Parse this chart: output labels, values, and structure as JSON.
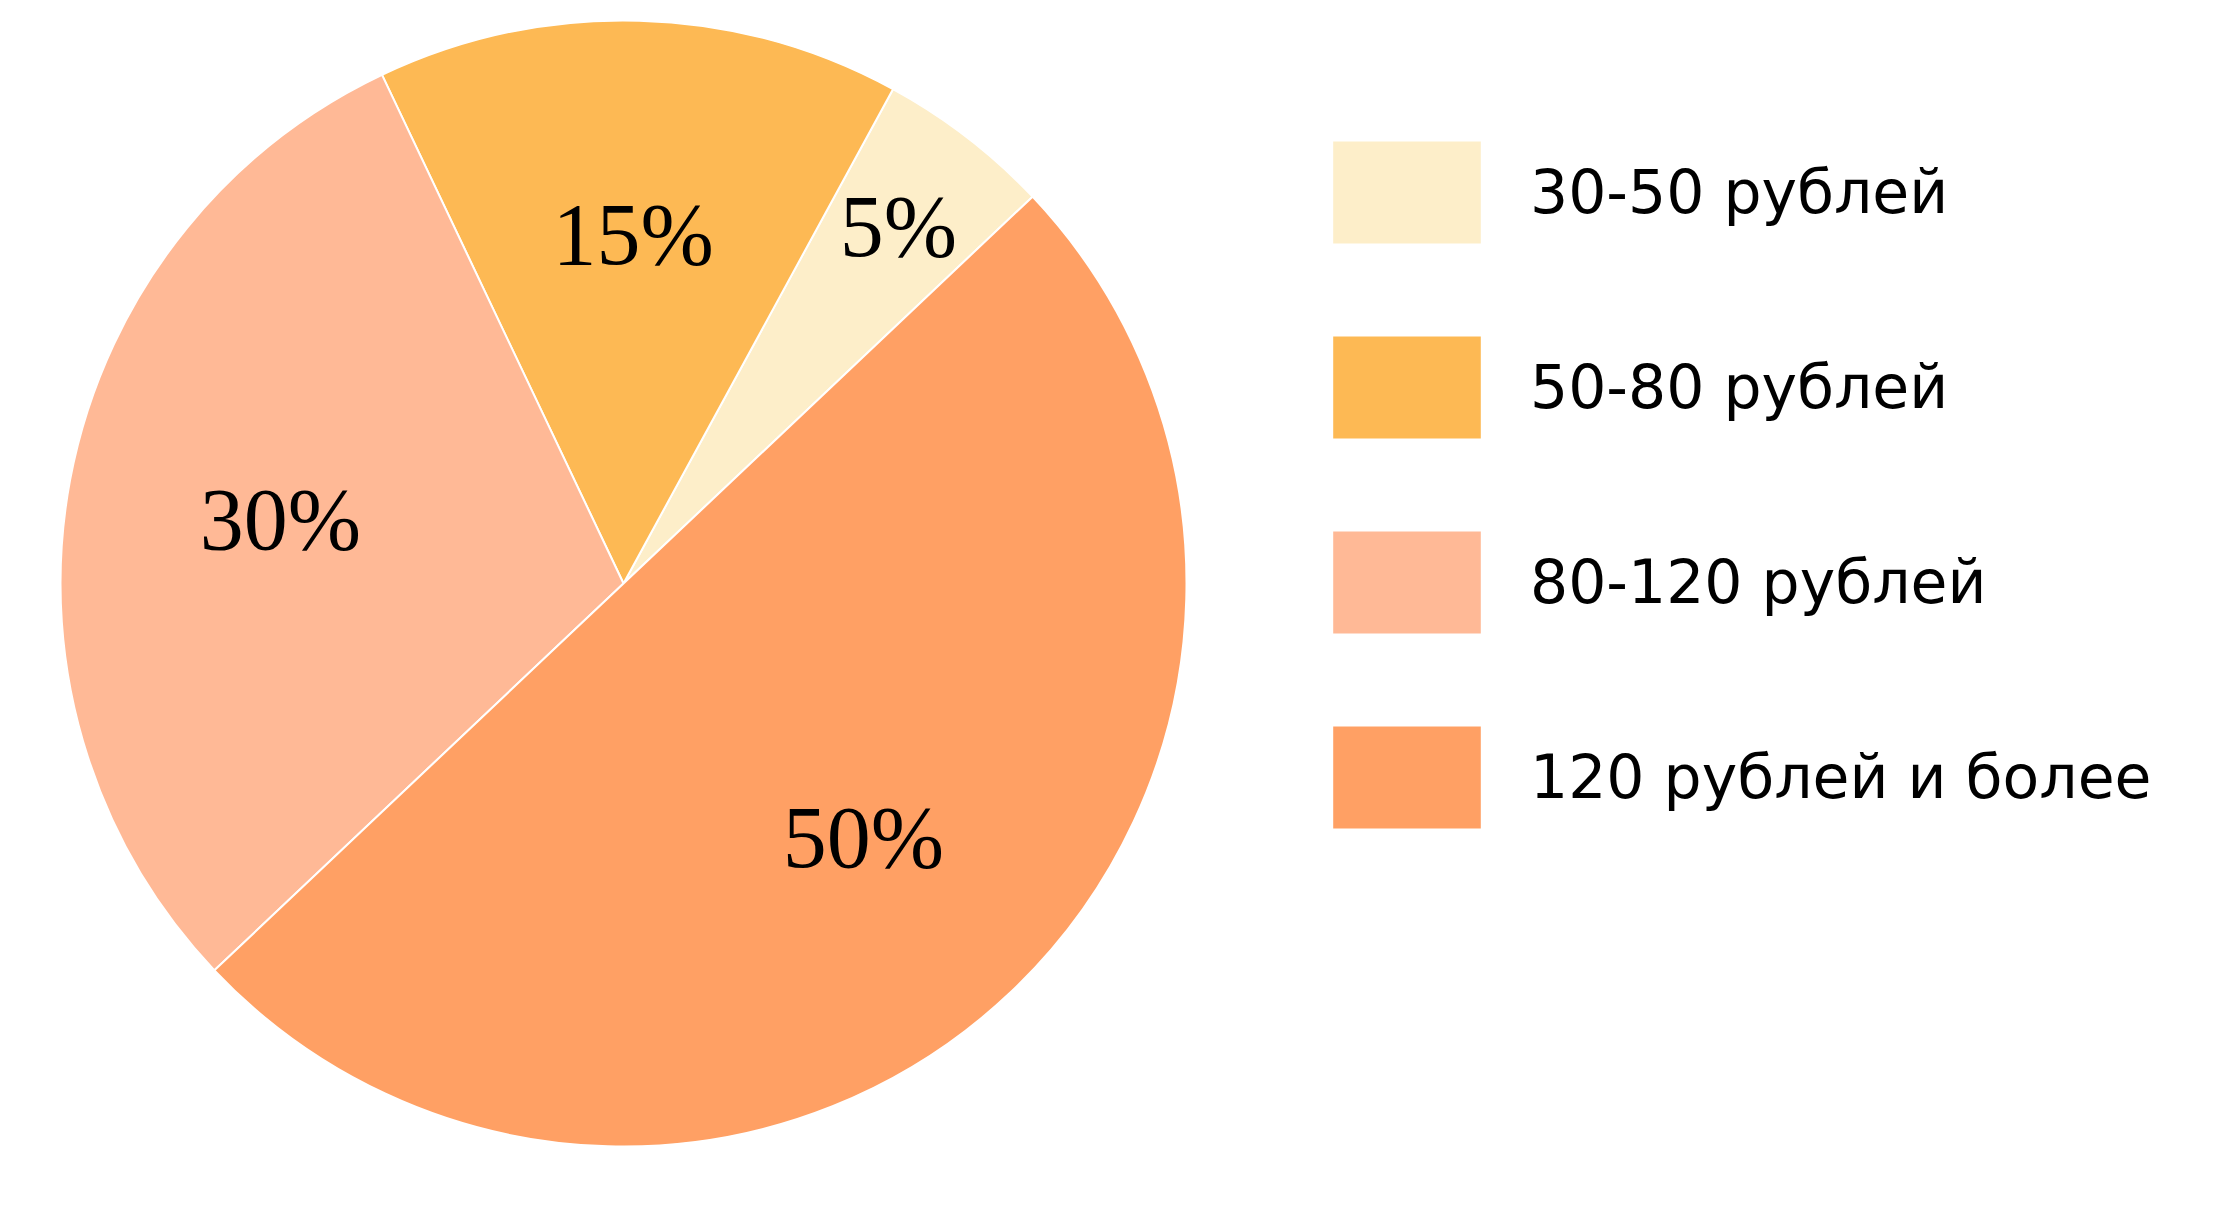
{
  "chart_data": {
    "type": "pie",
    "categories": [
      "30-50 рублей",
      "50-80 рублей",
      "80-120 рублей",
      "120 рублей и более"
    ],
    "values": [
      5,
      15,
      30,
      50
    ],
    "colors": [
      "#fdeec9",
      "#fdb954",
      "#ffb996",
      "#ffa064"
    ],
    "value_labels": [
      "5%",
      "15%",
      "30%",
      "50%"
    ],
    "legend": "right"
  }
}
